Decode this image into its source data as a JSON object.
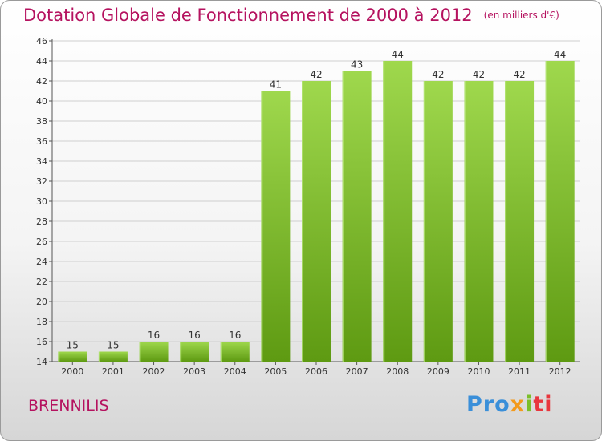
{
  "header": {
    "title": "Dotation Globale de Fonctionnement de 2000 à 2012",
    "unit": "(en milliers d'€)"
  },
  "footer": {
    "commune": "BRENNILIS",
    "logo": [
      "Pro",
      "x",
      "i",
      "ti"
    ]
  },
  "colors": {
    "title": "#b5125f",
    "bar_light": "#9fd84d",
    "bar_dark": "#5e9a12",
    "grid": "#cfcfcf"
  },
  "chart_data": {
    "type": "bar",
    "title": "Dotation Globale de Fonctionnement de 2000 à 2012",
    "subtitle": "(en milliers d'€)",
    "xlabel": "",
    "ylabel": "",
    "categories": [
      "2000",
      "2001",
      "2002",
      "2003",
      "2004",
      "2005",
      "2006",
      "2007",
      "2008",
      "2009",
      "2010",
      "2011",
      "2012"
    ],
    "values": [
      15,
      15,
      16,
      16,
      16,
      41,
      42,
      43,
      44,
      42,
      42,
      42,
      44
    ],
    "ylim": [
      14,
      46
    ],
    "yticks": [
      14,
      16,
      18,
      20,
      22,
      24,
      26,
      28,
      30,
      32,
      34,
      36,
      38,
      40,
      42,
      44,
      46
    ],
    "grid": true,
    "data_labels": true
  }
}
